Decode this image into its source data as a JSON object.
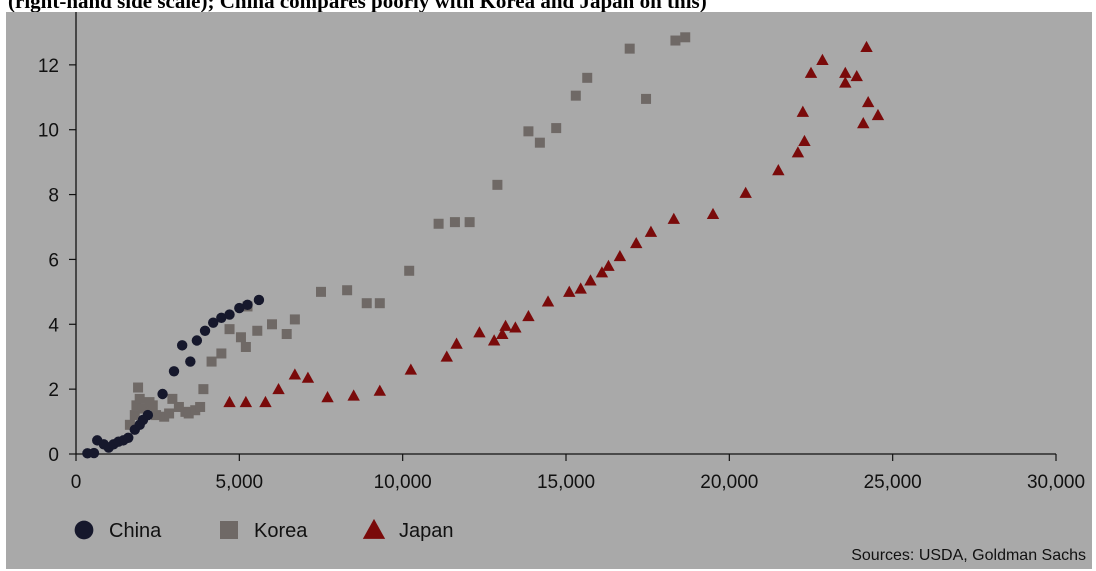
{
  "header": {
    "text": "(right-hand side scale); China compares poorly with Korea and Japan on this)"
  },
  "source": "Sources: USDA, Goldman Sachs",
  "colors": {
    "panel": "#a9a9a9",
    "china": "#16182c",
    "korea": "#6f6966",
    "japan": "#7a0a0a"
  },
  "chart_data": {
    "type": "scatter",
    "xlim": [
      0,
      30000
    ],
    "ylim": [
      0,
      14
    ],
    "xticks": [
      0,
      5000,
      10000,
      15000,
      20000,
      25000,
      30000
    ],
    "xtick_labels": [
      "0",
      "5,000",
      "10,000",
      "15,000",
      "20,000",
      "25,000",
      "30,000"
    ],
    "yticks": [
      0,
      2,
      4,
      6,
      8,
      10,
      12
    ],
    "ytick_labels": [
      "0",
      "2",
      "4",
      "6",
      "8",
      "10",
      "12"
    ],
    "grid": false,
    "legend_position": "bottom-left",
    "series": [
      {
        "name": "China",
        "marker": "circle",
        "color_key": "china",
        "points": [
          [
            350,
            0.02
          ],
          [
            550,
            0.03
          ],
          [
            650,
            0.42
          ],
          [
            850,
            0.3
          ],
          [
            1000,
            0.2
          ],
          [
            1150,
            0.3
          ],
          [
            1300,
            0.38
          ],
          [
            1450,
            0.42
          ],
          [
            1600,
            0.5
          ],
          [
            1800,
            0.75
          ],
          [
            1950,
            0.9
          ],
          [
            2050,
            1.05
          ],
          [
            2200,
            1.2
          ],
          [
            2650,
            1.85
          ],
          [
            3000,
            2.55
          ],
          [
            3250,
            3.35
          ],
          [
            3500,
            2.85
          ],
          [
            3700,
            3.5
          ],
          [
            3950,
            3.8
          ],
          [
            4200,
            4.05
          ],
          [
            4450,
            4.2
          ],
          [
            4700,
            4.3
          ],
          [
            5000,
            4.5
          ],
          [
            5250,
            4.6
          ],
          [
            5600,
            4.75
          ]
        ]
      },
      {
        "name": "Korea",
        "marker": "square",
        "color_key": "korea",
        "points": [
          [
            1650,
            0.9
          ],
          [
            1800,
            1.2
          ],
          [
            1850,
            1.5
          ],
          [
            1950,
            1.7
          ],
          [
            1900,
            2.05
          ],
          [
            2050,
            1.4
          ],
          [
            2250,
            1.6
          ],
          [
            2350,
            1.5
          ],
          [
            2450,
            1.2
          ],
          [
            2700,
            1.15
          ],
          [
            2850,
            1.25
          ],
          [
            2950,
            1.7
          ],
          [
            3150,
            1.45
          ],
          [
            3350,
            1.3
          ],
          [
            3450,
            1.25
          ],
          [
            3650,
            1.35
          ],
          [
            3800,
            1.45
          ],
          [
            3900,
            2.0
          ],
          [
            4150,
            2.85
          ],
          [
            4450,
            3.1
          ],
          [
            4700,
            3.85
          ],
          [
            5050,
            3.6
          ],
          [
            5200,
            3.3
          ],
          [
            5250,
            4.55
          ],
          [
            5550,
            3.8
          ],
          [
            6000,
            4.0
          ],
          [
            6450,
            3.7
          ],
          [
            6700,
            4.15
          ],
          [
            7500,
            5.0
          ],
          [
            8300,
            5.05
          ],
          [
            8900,
            4.65
          ],
          [
            9300,
            4.65
          ],
          [
            10200,
            5.65
          ],
          [
            11100,
            7.1
          ],
          [
            11600,
            7.15
          ],
          [
            12050,
            7.15
          ],
          [
            12900,
            8.3
          ],
          [
            13850,
            9.95
          ],
          [
            14200,
            9.6
          ],
          [
            14700,
            10.05
          ],
          [
            15300,
            11.05
          ],
          [
            15650,
            11.6
          ],
          [
            16950,
            12.5
          ],
          [
            17450,
            10.95
          ],
          [
            18350,
            12.75
          ],
          [
            18650,
            12.85
          ]
        ]
      },
      {
        "name": "Japan",
        "marker": "triangle",
        "color_key": "japan",
        "points": [
          [
            4700,
            1.6
          ],
          [
            5200,
            1.6
          ],
          [
            5800,
            1.6
          ],
          [
            6200,
            2.0
          ],
          [
            6700,
            2.45
          ],
          [
            7100,
            2.35
          ],
          [
            7700,
            1.75
          ],
          [
            8500,
            1.8
          ],
          [
            9300,
            1.95
          ],
          [
            10250,
            2.6
          ],
          [
            11350,
            3.0
          ],
          [
            11650,
            3.4
          ],
          [
            12350,
            3.75
          ],
          [
            12800,
            3.5
          ],
          [
            13050,
            3.7
          ],
          [
            13150,
            3.95
          ],
          [
            13450,
            3.9
          ],
          [
            13850,
            4.25
          ],
          [
            14450,
            4.7
          ],
          [
            15100,
            5.0
          ],
          [
            15450,
            5.1
          ],
          [
            15750,
            5.35
          ],
          [
            16100,
            5.6
          ],
          [
            16300,
            5.8
          ],
          [
            16650,
            6.1
          ],
          [
            17150,
            6.5
          ],
          [
            17600,
            6.85
          ],
          [
            18300,
            7.25
          ],
          [
            19500,
            7.4
          ],
          [
            20500,
            8.05
          ],
          [
            21500,
            8.75
          ],
          [
            22100,
            9.3
          ],
          [
            22300,
            9.65
          ],
          [
            22250,
            10.55
          ],
          [
            22500,
            11.75
          ],
          [
            22850,
            12.15
          ],
          [
            23550,
            11.75
          ],
          [
            23550,
            11.45
          ],
          [
            23900,
            11.65
          ],
          [
            24100,
            10.2
          ],
          [
            24200,
            12.55
          ],
          [
            24250,
            10.85
          ],
          [
            24550,
            10.45
          ]
        ]
      }
    ]
  }
}
